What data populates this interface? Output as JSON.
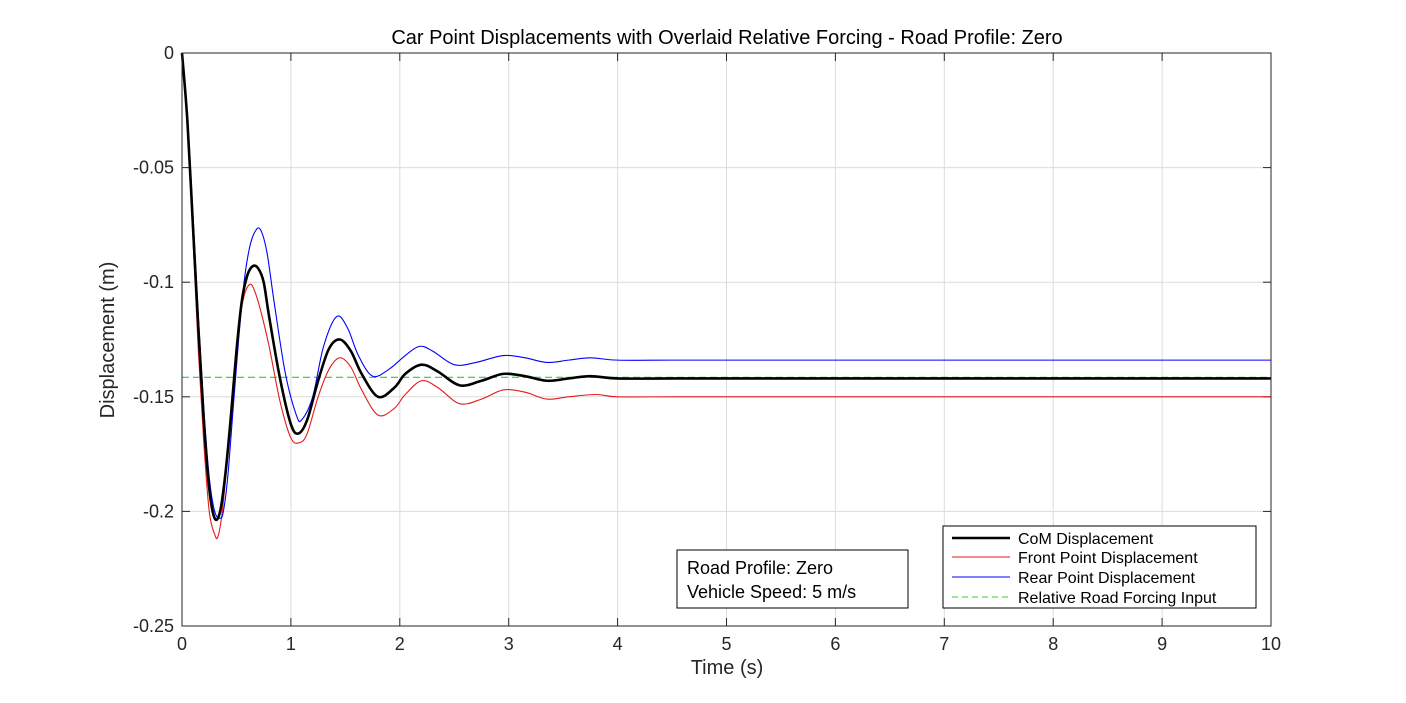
{
  "chart_data": {
    "type": "line",
    "title": "Car Point Displacements with Overlaid Relative Forcing - Road Profile: Zero",
    "xlabel": "Time (s)",
    "ylabel": "Displacement (m)",
    "xlim": [
      0,
      10
    ],
    "ylim": [
      -0.25,
      0
    ],
    "x_ticks": [
      0,
      1,
      2,
      3,
      4,
      5,
      6,
      7,
      8,
      9,
      10
    ],
    "y_ticks": [
      0,
      -0.05,
      -0.1,
      -0.15,
      -0.2,
      -0.25
    ],
    "x_tick_labels": [
      "0",
      "1",
      "2",
      "3",
      "4",
      "5",
      "6",
      "7",
      "8",
      "9",
      "10"
    ],
    "y_tick_labels": [
      "0",
      "-0.05",
      "-0.1",
      "-0.15",
      "-0.2",
      "-0.25"
    ],
    "grid": true,
    "legend_position": "bottom-right",
    "series": [
      {
        "name": "CoM Displacement",
        "color": "#000000",
        "style": "solid-thick",
        "x": [
          0,
          0.05,
          0.1,
          0.15,
          0.2,
          0.25,
          0.3,
          0.35,
          0.4,
          0.45,
          0.5,
          0.55,
          0.6,
          0.65,
          0.7,
          0.75,
          0.8,
          0.9,
          1.0,
          1.07,
          1.15,
          1.25,
          1.35,
          1.45,
          1.55,
          1.65,
          1.8,
          1.95,
          2.05,
          2.2,
          2.35,
          2.55,
          2.75,
          2.95,
          3.15,
          3.35,
          3.55,
          3.75,
          4.0,
          4.5,
          5,
          6,
          7,
          8,
          9,
          10
        ],
        "y": [
          0,
          -0.03,
          -0.075,
          -0.12,
          -0.16,
          -0.19,
          -0.203,
          -0.2,
          -0.183,
          -0.158,
          -0.13,
          -0.108,
          -0.097,
          -0.093,
          -0.094,
          -0.1,
          -0.115,
          -0.142,
          -0.162,
          -0.166,
          -0.16,
          -0.143,
          -0.129,
          -0.125,
          -0.13,
          -0.14,
          -0.15,
          -0.146,
          -0.14,
          -0.136,
          -0.139,
          -0.145,
          -0.143,
          -0.14,
          -0.141,
          -0.143,
          -0.142,
          -0.141,
          -0.142,
          -0.142,
          -0.142,
          -0.142,
          -0.142,
          -0.142,
          -0.142,
          -0.142
        ]
      },
      {
        "name": "Front Point Displacement",
        "color": "#e41a1c",
        "style": "solid",
        "x": [
          0,
          0.05,
          0.1,
          0.15,
          0.2,
          0.25,
          0.3,
          0.33,
          0.37,
          0.42,
          0.47,
          0.52,
          0.57,
          0.62,
          0.66,
          0.72,
          0.8,
          0.9,
          1.0,
          1.08,
          1.15,
          1.25,
          1.35,
          1.45,
          1.55,
          1.65,
          1.8,
          1.95,
          2.05,
          2.2,
          2.35,
          2.55,
          2.75,
          2.95,
          3.15,
          3.35,
          3.55,
          3.8,
          4.0,
          4.5,
          5,
          6,
          7,
          8,
          9,
          10
        ],
        "y": [
          0,
          -0.033,
          -0.08,
          -0.13,
          -0.17,
          -0.2,
          -0.21,
          -0.211,
          -0.2,
          -0.175,
          -0.145,
          -0.12,
          -0.106,
          -0.101,
          -0.103,
          -0.112,
          -0.128,
          -0.152,
          -0.168,
          -0.17,
          -0.166,
          -0.15,
          -0.138,
          -0.133,
          -0.137,
          -0.147,
          -0.158,
          -0.155,
          -0.149,
          -0.143,
          -0.146,
          -0.153,
          -0.151,
          -0.147,
          -0.148,
          -0.151,
          -0.15,
          -0.149,
          -0.15,
          -0.15,
          -0.15,
          -0.15,
          -0.15,
          -0.15,
          -0.15,
          -0.15
        ]
      },
      {
        "name": "Rear Point Displacement",
        "color": "#0000ff",
        "style": "solid",
        "x": [
          0,
          0.05,
          0.1,
          0.15,
          0.2,
          0.25,
          0.3,
          0.35,
          0.38,
          0.42,
          0.47,
          0.52,
          0.57,
          0.62,
          0.67,
          0.72,
          0.78,
          0.85,
          0.95,
          1.05,
          1.1,
          1.2,
          1.3,
          1.42,
          1.52,
          1.62,
          1.75,
          1.9,
          2.05,
          2.18,
          2.3,
          2.5,
          2.7,
          2.95,
          3.15,
          3.35,
          3.55,
          3.75,
          4.0,
          4.5,
          5,
          6,
          7,
          8,
          9,
          10
        ],
        "y": [
          0,
          -0.028,
          -0.07,
          -0.115,
          -0.155,
          -0.185,
          -0.2,
          -0.203,
          -0.2,
          -0.185,
          -0.155,
          -0.125,
          -0.1,
          -0.085,
          -0.078,
          -0.077,
          -0.087,
          -0.11,
          -0.14,
          -0.158,
          -0.16,
          -0.15,
          -0.128,
          -0.115,
          -0.12,
          -0.132,
          -0.141,
          -0.138,
          -0.132,
          -0.128,
          -0.13,
          -0.136,
          -0.135,
          -0.132,
          -0.133,
          -0.135,
          -0.134,
          -0.133,
          -0.134,
          -0.134,
          -0.134,
          -0.134,
          -0.134,
          -0.134,
          -0.134,
          -0.134
        ]
      },
      {
        "name": "Relative Road Forcing Input",
        "color": "#33cc33",
        "style": "dashed",
        "x": [
          0,
          10
        ],
        "y": [
          -0.1415,
          -0.1415
        ]
      }
    ],
    "annotation": {
      "line1": "Road Profile: Zero",
      "line2": "Vehicle Speed: 5 m/s"
    }
  }
}
